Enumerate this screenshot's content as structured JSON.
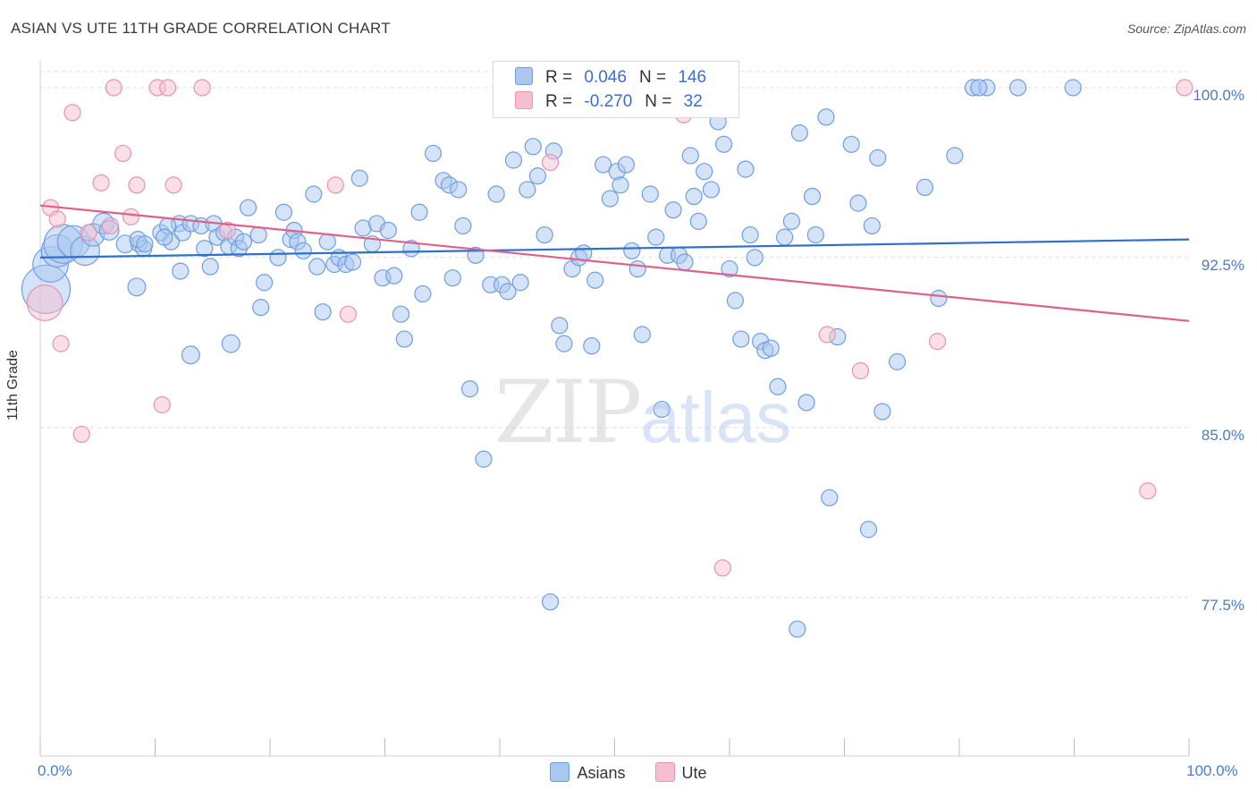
{
  "title": "ASIAN VS UTE 11TH GRADE CORRELATION CHART",
  "source": "Source: ZipAtlas.com",
  "watermark": {
    "zip": "ZIP",
    "atlas": "atlas"
  },
  "colors": {
    "asians_fill": "#a9c8f0",
    "asians_stroke": "#6f9ee0",
    "asians_line": "#2f6fd0",
    "ute_fill": "#f5bfd0",
    "ute_stroke": "#e893b0",
    "ute_line": "#e0608a",
    "tick_label": "#4a7cc9",
    "grid": "#dcdcdc"
  },
  "stats": [
    {
      "r_label": "R =",
      "r_value": "0.046",
      "n_label": "N =",
      "n_value": "146"
    },
    {
      "r_label": "R =",
      "r_value": "-0.270",
      "n_label": "N =",
      "n_value": "32"
    }
  ],
  "chart_data": {
    "type": "scatter",
    "title": "ASIAN VS UTE 11TH GRADE CORRELATION CHART",
    "xlabel": "",
    "ylabel": "11th Grade",
    "xlim": [
      0,
      100
    ],
    "ylim": [
      70.5,
      101.5
    ],
    "x_tick_labels": [
      "0.0%",
      "100.0%"
    ],
    "y_ticks": [
      {
        "value": 100,
        "label": "100.0%"
      },
      {
        "value": 92.5,
        "label": "92.5%"
      },
      {
        "value": 85,
        "label": "85.0%"
      },
      {
        "value": 77.5,
        "label": "77.5%"
      }
    ],
    "grid": true,
    "legend_position": "bottom",
    "series": [
      {
        "name": "Asians",
        "trend": {
          "x": [
            0,
            100
          ],
          "y": [
            92.5,
            93.3
          ]
        },
        "points": [
          [
            0.5,
            91.1,
            3
          ],
          [
            0.9,
            92.2,
            2.2
          ],
          [
            1.5,
            92.8,
            2
          ],
          [
            2,
            93.1,
            2.4
          ],
          [
            2.9,
            93.2,
            2
          ],
          [
            3.9,
            92.8,
            1.8
          ],
          [
            4.6,
            93.5,
            1.4
          ],
          [
            5.5,
            94.0,
            1.3
          ],
          [
            6,
            93.7,
            1.2
          ],
          [
            7.4,
            93.1,
            1.1
          ],
          [
            8.6,
            93.1,
            1
          ],
          [
            9,
            92.9,
            1
          ],
          [
            8.4,
            91.2,
            1.1
          ],
          [
            8.5,
            93.3,
            1
          ],
          [
            9.1,
            93.1,
            1
          ],
          [
            10.5,
            93.6,
            1
          ],
          [
            11.4,
            93.2,
            1
          ],
          [
            12.1,
            94.0,
            1
          ],
          [
            12.4,
            93.6,
            1
          ],
          [
            11.1,
            93.9,
            1
          ],
          [
            10.8,
            93.4,
            1
          ],
          [
            12.2,
            91.9,
            1
          ],
          [
            13.1,
            94.0,
            1
          ],
          [
            14,
            93.9,
            1
          ],
          [
            14.3,
            92.9,
            1
          ],
          [
            15.1,
            94.0,
            1
          ],
          [
            13.1,
            88.2,
            1.1
          ],
          [
            14.8,
            92.1,
            1
          ],
          [
            15.4,
            93.4,
            1
          ],
          [
            16,
            93.6,
            1
          ],
          [
            16.4,
            93.0,
            1
          ],
          [
            16.6,
            88.7,
            1.1
          ],
          [
            17,
            93.4,
            1
          ],
          [
            17.3,
            92.9,
            1
          ],
          [
            17.7,
            93.2,
            1
          ],
          [
            18.1,
            94.7,
            1
          ],
          [
            19,
            93.5,
            1
          ],
          [
            19.2,
            90.3,
            1
          ],
          [
            19.5,
            91.4,
            1
          ],
          [
            20.7,
            92.5,
            1
          ],
          [
            21.2,
            94.5,
            1
          ],
          [
            21.8,
            93.3,
            1
          ],
          [
            22.1,
            93.7,
            1
          ],
          [
            22.4,
            93.2,
            1
          ],
          [
            22.9,
            92.8,
            1
          ],
          [
            23.8,
            95.3,
            1
          ],
          [
            24.1,
            92.1,
            1
          ],
          [
            24.6,
            90.1,
            1
          ],
          [
            25,
            93.2,
            1
          ],
          [
            25.6,
            92.2,
            1
          ],
          [
            26,
            92.5,
            1
          ],
          [
            26.6,
            92.2,
            1
          ],
          [
            27.2,
            92.3,
            1
          ],
          [
            27.8,
            96.0,
            1
          ],
          [
            28.1,
            93.8,
            1
          ],
          [
            28.9,
            93.1,
            1
          ],
          [
            29.3,
            94.0,
            1
          ],
          [
            29.8,
            91.6,
            1
          ],
          [
            30.3,
            93.7,
            1
          ],
          [
            30.8,
            91.7,
            1
          ],
          [
            31.4,
            90.0,
            1
          ],
          [
            31.7,
            88.9,
            1
          ],
          [
            32.3,
            92.9,
            1
          ],
          [
            33,
            94.5,
            1
          ],
          [
            33.3,
            90.9,
            1
          ],
          [
            34.2,
            97.1,
            1
          ],
          [
            35.1,
            95.9,
            1
          ],
          [
            35.6,
            95.7,
            1
          ],
          [
            35.9,
            91.6,
            1
          ],
          [
            36.4,
            95.5,
            1
          ],
          [
            36.8,
            93.9,
            1
          ],
          [
            37.4,
            86.7,
            1
          ],
          [
            37.9,
            92.6,
            1
          ],
          [
            38.6,
            83.6,
            1
          ],
          [
            39.2,
            91.3,
            1
          ],
          [
            39.7,
            95.3,
            1
          ],
          [
            40.2,
            91.3,
            1
          ],
          [
            40.7,
            91.0,
            1
          ],
          [
            41.2,
            96.8,
            1
          ],
          [
            41.8,
            91.4,
            1
          ],
          [
            42.4,
            95.5,
            1
          ],
          [
            42.9,
            97.4,
            1
          ],
          [
            43.3,
            96.1,
            1
          ],
          [
            43.9,
            93.5,
            1
          ],
          [
            44.4,
            77.3,
            1
          ],
          [
            44.7,
            97.2,
            1
          ],
          [
            45.2,
            89.5,
            1
          ],
          [
            45.6,
            88.7,
            1
          ],
          [
            46.3,
            92.0,
            1
          ],
          [
            46.9,
            92.5,
            1
          ],
          [
            47.3,
            92.7,
            1
          ],
          [
            48,
            88.6,
            1
          ],
          [
            48.3,
            91.5,
            1
          ],
          [
            49,
            96.6,
            1
          ],
          [
            49.6,
            95.1,
            1
          ],
          [
            50.2,
            96.3,
            1
          ],
          [
            50.5,
            95.7,
            1
          ],
          [
            51,
            96.6,
            1
          ],
          [
            51.5,
            92.8,
            1
          ],
          [
            52,
            92.0,
            1
          ],
          [
            52.4,
            89.1,
            1
          ],
          [
            53.1,
            95.3,
            1
          ],
          [
            53.6,
            93.4,
            1
          ],
          [
            54.1,
            85.8,
            1
          ],
          [
            54.6,
            92.6,
            1
          ],
          [
            55.1,
            94.6,
            1
          ],
          [
            55.6,
            92.6,
            1
          ],
          [
            56.1,
            92.3,
            1
          ],
          [
            56.6,
            97.0,
            1
          ],
          [
            56.9,
            95.2,
            1
          ],
          [
            57.3,
            94.1,
            1
          ],
          [
            57.8,
            96.3,
            1
          ],
          [
            58.4,
            95.5,
            1
          ],
          [
            59,
            98.5,
            1
          ],
          [
            59.5,
            97.5,
            1
          ],
          [
            60,
            92.0,
            1
          ],
          [
            60.5,
            90.6,
            1
          ],
          [
            61,
            88.9,
            1
          ],
          [
            61.4,
            96.4,
            1
          ],
          [
            61.8,
            93.5,
            1
          ],
          [
            62.2,
            92.5,
            1
          ],
          [
            62.7,
            88.8,
            1
          ],
          [
            63.1,
            88.4,
            1
          ],
          [
            63.6,
            88.5,
            1
          ],
          [
            64.2,
            86.8,
            1
          ],
          [
            64.8,
            93.4,
            1
          ],
          [
            65.4,
            94.1,
            1
          ],
          [
            66.1,
            98.0,
            1
          ],
          [
            66.7,
            86.1,
            1
          ],
          [
            67.2,
            95.2,
            1
          ],
          [
            67.5,
            93.5,
            1
          ],
          [
            65.9,
            76.1,
            1
          ],
          [
            68.4,
            98.7,
            1
          ],
          [
            68.7,
            81.9,
            1
          ],
          [
            69.4,
            89.0,
            1
          ],
          [
            70.6,
            97.5,
            1
          ],
          [
            71.2,
            94.9,
            1
          ],
          [
            72.1,
            80.5,
            1
          ],
          [
            72.4,
            93.9,
            1
          ],
          [
            72.9,
            96.9,
            1
          ],
          [
            73.3,
            85.7,
            1
          ],
          [
            74.6,
            87.9,
            1
          ],
          [
            77,
            95.6,
            1
          ],
          [
            78.2,
            90.7,
            1
          ],
          [
            79.6,
            97.0,
            1
          ],
          [
            81.2,
            100.0,
            1
          ],
          [
            82.4,
            100.0,
            1
          ],
          [
            81.7,
            100.0,
            1
          ],
          [
            85.1,
            100.0,
            1
          ],
          [
            89.9,
            100.0,
            1
          ]
        ]
      },
      {
        "name": "Ute",
        "trend": {
          "x": [
            0,
            100
          ],
          "y": [
            94.8,
            89.7
          ]
        },
        "points": [
          [
            0.4,
            90.5,
            2.2
          ],
          [
            0.9,
            94.7,
            1
          ],
          [
            1.5,
            94.2,
            1
          ],
          [
            1.8,
            88.7,
            1
          ],
          [
            2.8,
            98.9,
            1
          ],
          [
            3.6,
            84.7,
            1
          ],
          [
            4.2,
            93.6,
            1
          ],
          [
            5.3,
            95.8,
            1
          ],
          [
            6.1,
            93.9,
            1
          ],
          [
            6.4,
            100.0,
            1
          ],
          [
            7.2,
            97.1,
            1
          ],
          [
            7.9,
            94.3,
            1
          ],
          [
            8.4,
            95.7,
            1
          ],
          [
            10.2,
            100.0,
            1
          ],
          [
            10.6,
            86.0,
            1
          ],
          [
            11.1,
            100.0,
            1
          ],
          [
            11.6,
            95.7,
            1
          ],
          [
            14.1,
            100.0,
            1
          ],
          [
            16.3,
            93.7,
            1
          ],
          [
            25.7,
            95.7,
            1
          ],
          [
            26.8,
            90.0,
            1
          ],
          [
            44.4,
            96.7,
            1
          ],
          [
            52.3,
            100.0,
            1
          ],
          [
            56,
            98.8,
            1
          ],
          [
            59.4,
            78.8,
            1
          ],
          [
            68.5,
            89.1,
            1
          ],
          [
            71.4,
            87.5,
            1
          ],
          [
            78.1,
            88.8,
            1
          ],
          [
            96.4,
            82.2,
            1
          ],
          [
            99.6,
            100.0,
            1
          ]
        ]
      }
    ]
  },
  "legend": {
    "items": [
      "Asians",
      "Ute"
    ]
  }
}
